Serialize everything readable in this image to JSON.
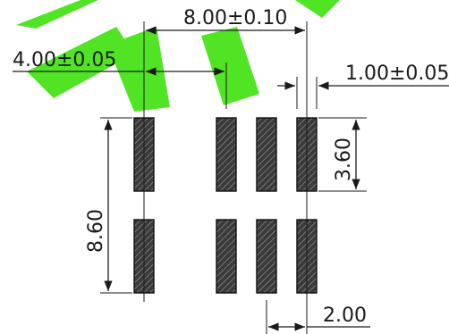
{
  "watermark": {
    "color": "#33e000"
  },
  "pad_color": "#2b2b2b",
  "dimensions": {
    "pitch_outer": "8.00±0.10",
    "pitch_inner": "4.00±0.05",
    "pad_width": "1.00±0.05",
    "pad_height": "3.60",
    "total_height": "8.60",
    "pad_pitch": "2.00"
  }
}
